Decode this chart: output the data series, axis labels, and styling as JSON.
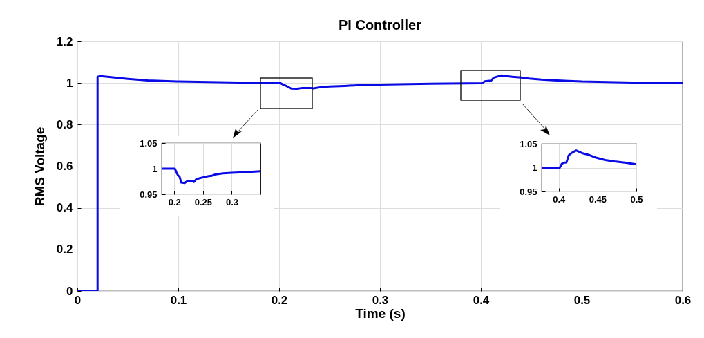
{
  "chart_data": [
    {
      "type": "line",
      "title": "PI Controller",
      "xlabel": "Time (s)",
      "ylabel": "RMS Voltage",
      "xlim": [
        0,
        0.6
      ],
      "ylim": [
        0,
        1.2
      ],
      "xticks": [
        0,
        0.1,
        0.2,
        0.3,
        0.4,
        0.5,
        0.6
      ],
      "yticks": [
        0,
        0.2,
        0.4,
        0.6,
        0.8,
        1,
        1.2
      ],
      "grid": true,
      "series": [
        {
          "color": "#0a0ae6",
          "x": [
            0,
            0.02,
            0.02,
            0.023,
            0.03,
            0.05,
            0.07,
            0.1,
            0.15,
            0.19,
            0.201,
            0.204,
            0.207,
            0.212,
            0.218,
            0.223,
            0.231,
            0.234,
            0.243,
            0.25,
            0.265,
            0.285,
            0.3,
            0.35,
            0.401,
            0.404,
            0.41,
            0.413,
            0.42,
            0.431,
            0.44,
            0.448,
            0.46,
            0.472,
            0.487,
            0.5,
            0.55,
            0.6
          ],
          "values": [
            0,
            0,
            1.03,
            1.033,
            1.03,
            1.02,
            1.012,
            1.007,
            1.003,
            1.0,
            1.0,
            0.992,
            0.986,
            0.973,
            0.972,
            0.976,
            0.976,
            0.974,
            0.981,
            0.983,
            0.986,
            0.991,
            0.992,
            0.996,
            0.999,
            1.008,
            1.011,
            1.026,
            1.036,
            1.03,
            1.026,
            1.021,
            1.016,
            1.013,
            1.01,
            1.007,
            1.002,
            1.0
          ]
        }
      ]
    },
    {
      "type": "line",
      "xlim": [
        0.178,
        0.35
      ],
      "ylim": [
        0.95,
        1.05
      ],
      "xticks": [
        0.2,
        0.25,
        0.3
      ],
      "yticks": [
        0.95,
        1,
        1.05
      ],
      "grid": true,
      "series": [
        {
          "color": "#0a0ae6",
          "x": [
            0.178,
            0.201,
            0.204,
            0.207,
            0.209,
            0.212,
            0.218,
            0.223,
            0.231,
            0.234,
            0.238,
            0.243,
            0.25,
            0.258,
            0.265,
            0.272,
            0.285,
            0.3,
            0.32,
            0.35
          ],
          "values": [
            1.0,
            1.0,
            0.992,
            0.986,
            0.985,
            0.973,
            0.972,
            0.976,
            0.976,
            0.974,
            0.979,
            0.981,
            0.983,
            0.985,
            0.986,
            0.989,
            0.991,
            0.992,
            0.993,
            0.995
          ]
        }
      ]
    },
    {
      "type": "line",
      "xlim": [
        0.378,
        0.5
      ],
      "ylim": [
        0.95,
        1.05
      ],
      "xticks": [
        0.4,
        0.45,
        0.5
      ],
      "yticks": [
        0.95,
        1,
        1.05
      ],
      "grid": true,
      "series": [
        {
          "color": "#0a0ae6",
          "x": [
            0.378,
            0.401,
            0.404,
            0.406,
            0.41,
            0.413,
            0.416,
            0.4225,
            0.431,
            0.44,
            0.448,
            0.46,
            0.472,
            0.487,
            0.5
          ],
          "values": [
            0.999,
            0.999,
            1.008,
            1.01,
            1.011,
            1.026,
            1.03,
            1.036,
            1.03,
            1.026,
            1.021,
            1.016,
            1.013,
            1.01,
            1.007
          ]
        }
      ]
    }
  ]
}
